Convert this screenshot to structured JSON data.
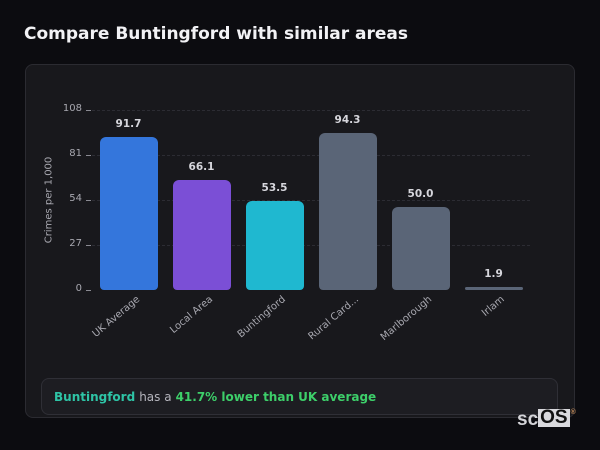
{
  "page": {
    "title": "Compare Buntingford with similar areas"
  },
  "chart_data": {
    "type": "bar",
    "title": "Compare Buntingford with similar areas",
    "xlabel": "",
    "ylabel": "Crimes per 1,000",
    "ylim": [
      0,
      108
    ],
    "yticks": [
      0,
      27,
      54,
      81,
      108
    ],
    "grid": true,
    "categories": [
      "UK Average",
      "Local Area",
      "Buntingford",
      "Rural Card...",
      "Marlborough",
      "Irlam"
    ],
    "values": [
      91.7,
      66.1,
      53.5,
      94.3,
      50.0,
      1.9
    ],
    "value_labels": [
      "91.7",
      "66.1",
      "53.5",
      "94.3",
      "50.0",
      "1.9"
    ],
    "colors": [
      "#3476dc",
      "#7b4fd6",
      "#1fb8d0",
      "#5a6577",
      "#5a6577",
      "#5a6577"
    ]
  },
  "insight": {
    "area": "Buntingford",
    "middle": "has a",
    "stat": "41.7% lower than UK average"
  },
  "watermark": {
    "prefix": "sc",
    "boxed": "OS",
    "reg": "®"
  }
}
